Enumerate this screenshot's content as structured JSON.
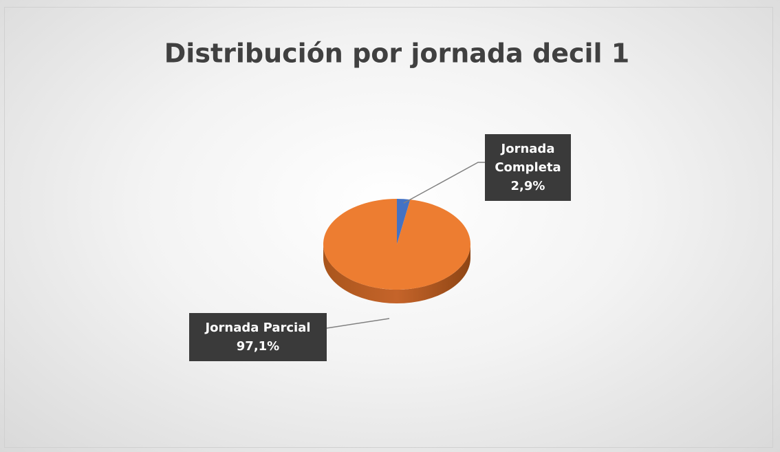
{
  "chart_data": {
    "type": "pie",
    "title": "Distribución por jornada decil 1",
    "categories": [
      "Jornada Completa",
      "Jornada Parcial"
    ],
    "values": [
      2.9,
      97.1
    ],
    "value_labels": [
      "2,9%",
      "97,1%"
    ],
    "colors": [
      "#4472c4",
      "#ed7d31"
    ]
  }
}
